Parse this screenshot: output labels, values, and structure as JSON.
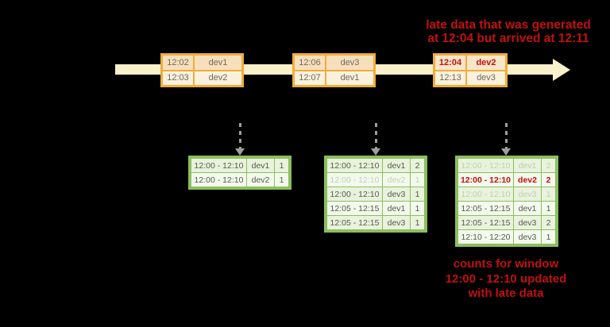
{
  "colors": {
    "background": "#000000",
    "late_red": "#C11010",
    "timeline_fill": "#FAF0CA",
    "event_box_border": "#EFAD3D",
    "event_row_top_fill": "#F8DFBC",
    "event_row_bottom_fill": "#FAF1DC",
    "event_text": "#6E6A60",
    "table_border": "#8CBE5E",
    "table_row_odd_fill": "#E9F2DC",
    "table_row_even_fill": "#F4F9EE",
    "table_text": "#555B4A",
    "table_text_faded": "#BFD2AC",
    "arrow_gray": "#9E9E9E"
  },
  "annotations": {
    "late_data_note": {
      "line1": "late data that was generated",
      "line2": "at 12:04 but arrived at 12:11"
    },
    "update_note": {
      "line1": "counts for window",
      "line2": "12:00 - 12:10 updated",
      "line3": "with late data"
    }
  },
  "timeline": {
    "event_batches": [
      {
        "rows": [
          {
            "time": "12:02",
            "device": "dev1",
            "late": false
          },
          {
            "time": "12:03",
            "device": "dev2",
            "late": false
          }
        ]
      },
      {
        "rows": [
          {
            "time": "12:06",
            "device": "dev3",
            "late": false
          },
          {
            "time": "12:07",
            "device": "dev1",
            "late": false
          }
        ]
      },
      {
        "rows": [
          {
            "time": "12:04",
            "device": "dev2",
            "late": true
          },
          {
            "time": "12:13",
            "device": "dev3",
            "late": false
          }
        ]
      }
    ]
  },
  "result_tables": [
    {
      "rows": [
        {
          "window": "12:00 - 12:10",
          "device": "dev1",
          "count": "1",
          "state": "normal"
        },
        {
          "window": "12:00 - 12:10",
          "device": "dev2",
          "count": "1",
          "state": "normal"
        }
      ]
    },
    {
      "rows": [
        {
          "window": "12:00 - 12:10",
          "device": "dev1",
          "count": "2",
          "state": "normal"
        },
        {
          "window": "12:00 - 12:10",
          "device": "dev2",
          "count": "1",
          "state": "faded"
        },
        {
          "window": "12:00 - 12:10",
          "device": "dev3",
          "count": "1",
          "state": "normal"
        },
        {
          "window": "12:05 - 12:15",
          "device": "dev1",
          "count": "1",
          "state": "normal"
        },
        {
          "window": "12:05 - 12:15",
          "device": "dev3",
          "count": "1",
          "state": "normal"
        }
      ]
    },
    {
      "rows": [
        {
          "window": "12:00 - 12:10",
          "device": "dev1",
          "count": "2",
          "state": "faded"
        },
        {
          "window": "12:00 - 12:10",
          "device": "dev2",
          "count": "2",
          "state": "late"
        },
        {
          "window": "12:00 - 12:10",
          "device": "dev3",
          "count": "1",
          "state": "faded"
        },
        {
          "window": "12:05 - 12:15",
          "device": "dev1",
          "count": "1",
          "state": "normal"
        },
        {
          "window": "12:05 - 12:15",
          "device": "dev3",
          "count": "2",
          "state": "normal"
        },
        {
          "window": "12:10 - 12:20",
          "device": "dev3",
          "count": "1",
          "state": "normal"
        }
      ]
    }
  ]
}
